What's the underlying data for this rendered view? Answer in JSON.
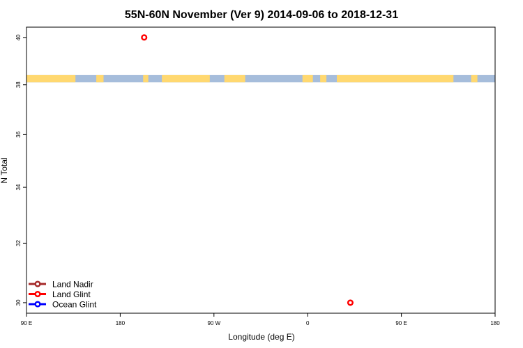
{
  "chart_data": {
    "type": "scatter",
    "title": "55N-60N November (Ver 9)   2014-09-06 to 2018-12-31",
    "xlabel": "Longitude (deg E)",
    "ylabel": "N Total",
    "xlim": [
      90,
      540
    ],
    "ylim": [
      29.66,
      40.45
    ],
    "y_scale": "log",
    "x_ticks": [
      {
        "value": 90,
        "label": "90 E"
      },
      {
        "value": 180,
        "label": "180"
      },
      {
        "value": 270,
        "label": "90 W"
      },
      {
        "value": 360,
        "label": "0"
      },
      {
        "value": 450,
        "label": "90 E"
      },
      {
        "value": 540,
        "label": "180"
      }
    ],
    "y_ticks": [
      30,
      32,
      34,
      36,
      38,
      40
    ],
    "grid": false,
    "legend_position": "bottom-left",
    "series": [
      {
        "name": "Land Nadir",
        "color": "#a52a2a",
        "points": []
      },
      {
        "name": "Land Glint",
        "color": "#ff0000",
        "points": [
          [
            203,
            40
          ],
          [
            401,
            30
          ]
        ]
      },
      {
        "name": "Ocean Glint",
        "color": "#0000ff",
        "points": []
      }
    ],
    "map_band": {
      "y_range": [
        38.1,
        38.4
      ],
      "land_color": "#ffd870",
      "ocean_color": "#a6bddb",
      "land_segments": [
        [
          90,
          137
        ],
        [
          157,
          164
        ],
        [
          202,
          207
        ],
        [
          220,
          266
        ],
        [
          280,
          300
        ],
        [
          355,
          365
        ],
        [
          372,
          378
        ],
        [
          388,
          500
        ],
        [
          517,
          523
        ]
      ]
    }
  }
}
